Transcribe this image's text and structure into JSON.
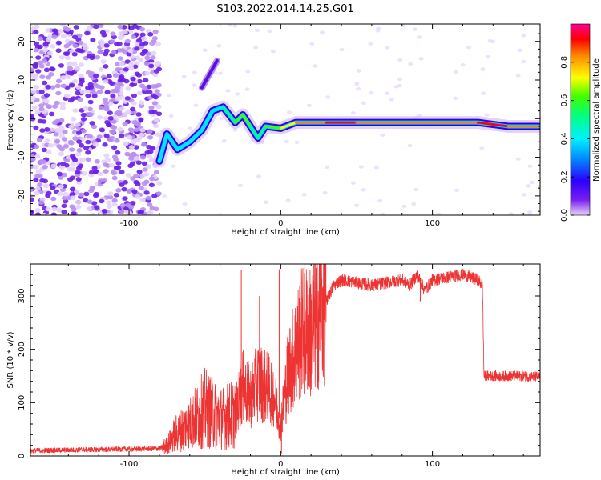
{
  "title": "S103.2022.014.14.25.G01",
  "chart_data": [
    {
      "type": "heatmap",
      "xlabel": "Height of straight line (km)",
      "ylabel": "Frequency (Hz)",
      "xlim": [
        -165,
        171
      ],
      "ylim": [
        -25,
        24.5
      ],
      "xticks": [
        -100,
        0,
        100
      ],
      "yticks": [
        -20,
        -10,
        0,
        10,
        20
      ],
      "colorbar": {
        "label": "Normalized spectral amplitude",
        "range": [
          0,
          1
        ],
        "ticks": [
          0.0,
          0.2,
          0.4,
          0.6,
          0.8
        ],
        "colormap": [
          "#e0c8f8",
          "#5a00e0",
          "#0044ff",
          "#00e8ff",
          "#00ff80",
          "#40ff00",
          "#ffff00",
          "#ff8000",
          "#ff0000",
          "#ff0090"
        ]
      },
      "noise_region_x": [
        -165,
        -80
      ],
      "ridge": [
        {
          "x": -80,
          "y": -11,
          "v": 0.3
        },
        {
          "x": -75,
          "y": -4,
          "v": 0.35
        },
        {
          "x": -68,
          "y": -8,
          "v": 0.3
        },
        {
          "x": -60,
          "y": -6,
          "v": 0.35
        },
        {
          "x": -52,
          "y": -3,
          "v": 0.4
        },
        {
          "x": -45,
          "y": 2,
          "v": 0.3
        },
        {
          "x": -38,
          "y": 3,
          "v": 0.35
        },
        {
          "x": -30,
          "y": -1,
          "v": 0.45
        },
        {
          "x": -25,
          "y": 1,
          "v": 0.6
        },
        {
          "x": -20,
          "y": -2,
          "v": 0.5
        },
        {
          "x": -15,
          "y": -5,
          "v": 0.4
        },
        {
          "x": -10,
          "y": -2,
          "v": 0.5
        },
        {
          "x": 0,
          "y": -2.5,
          "v": 0.65
        },
        {
          "x": 10,
          "y": -1,
          "v": 0.75
        },
        {
          "x": 30,
          "y": -1,
          "v": 0.85
        },
        {
          "x": 50,
          "y": -1,
          "v": 0.85
        },
        {
          "x": 70,
          "y": -1,
          "v": 0.75
        },
        {
          "x": 90,
          "y": -1,
          "v": 0.8
        },
        {
          "x": 110,
          "y": -1,
          "v": 0.85
        },
        {
          "x": 130,
          "y": -1,
          "v": 0.8
        },
        {
          "x": 150,
          "y": -2,
          "v": 0.95
        },
        {
          "x": 170,
          "y": -2,
          "v": 0.5
        }
      ],
      "streak": [
        {
          "x": -52,
          "y": 8
        },
        {
          "x": -42,
          "y": 15
        }
      ]
    },
    {
      "type": "line",
      "xlabel": "Height of straight line (km)",
      "ylabel": "SNR (10 * v/v)",
      "xlim": [
        -165,
        171
      ],
      "ylim": [
        0,
        360
      ],
      "xticks": [
        -100,
        0,
        100
      ],
      "yticks": [
        0,
        100,
        200,
        300
      ],
      "color": "#ee3333",
      "x": [
        -165,
        -80,
        -75,
        -70,
        -60,
        -50,
        -40,
        -30,
        -25,
        -20,
        -15,
        -10,
        -5,
        0,
        5,
        10,
        15,
        20,
        25,
        30,
        35,
        40,
        60,
        80,
        85,
        90,
        95,
        100,
        120,
        130,
        133,
        134,
        140,
        160,
        171
      ],
      "y": [
        10,
        14,
        20,
        40,
        60,
        90,
        70,
        80,
        130,
        110,
        140,
        130,
        120,
        60,
        160,
        200,
        240,
        230,
        270,
        290,
        320,
        330,
        320,
        330,
        320,
        340,
        310,
        330,
        340,
        330,
        320,
        150,
        150,
        150,
        148
      ],
      "spikes": [
        {
          "x": -26,
          "y": 348
        },
        {
          "x": -14,
          "y": 300
        },
        {
          "x": -1,
          "y": 350
        },
        {
          "x": 0.5,
          "y": 5
        },
        {
          "x": 25,
          "y": 140
        },
        {
          "x": 92,
          "y": 290
        }
      ]
    }
  ]
}
